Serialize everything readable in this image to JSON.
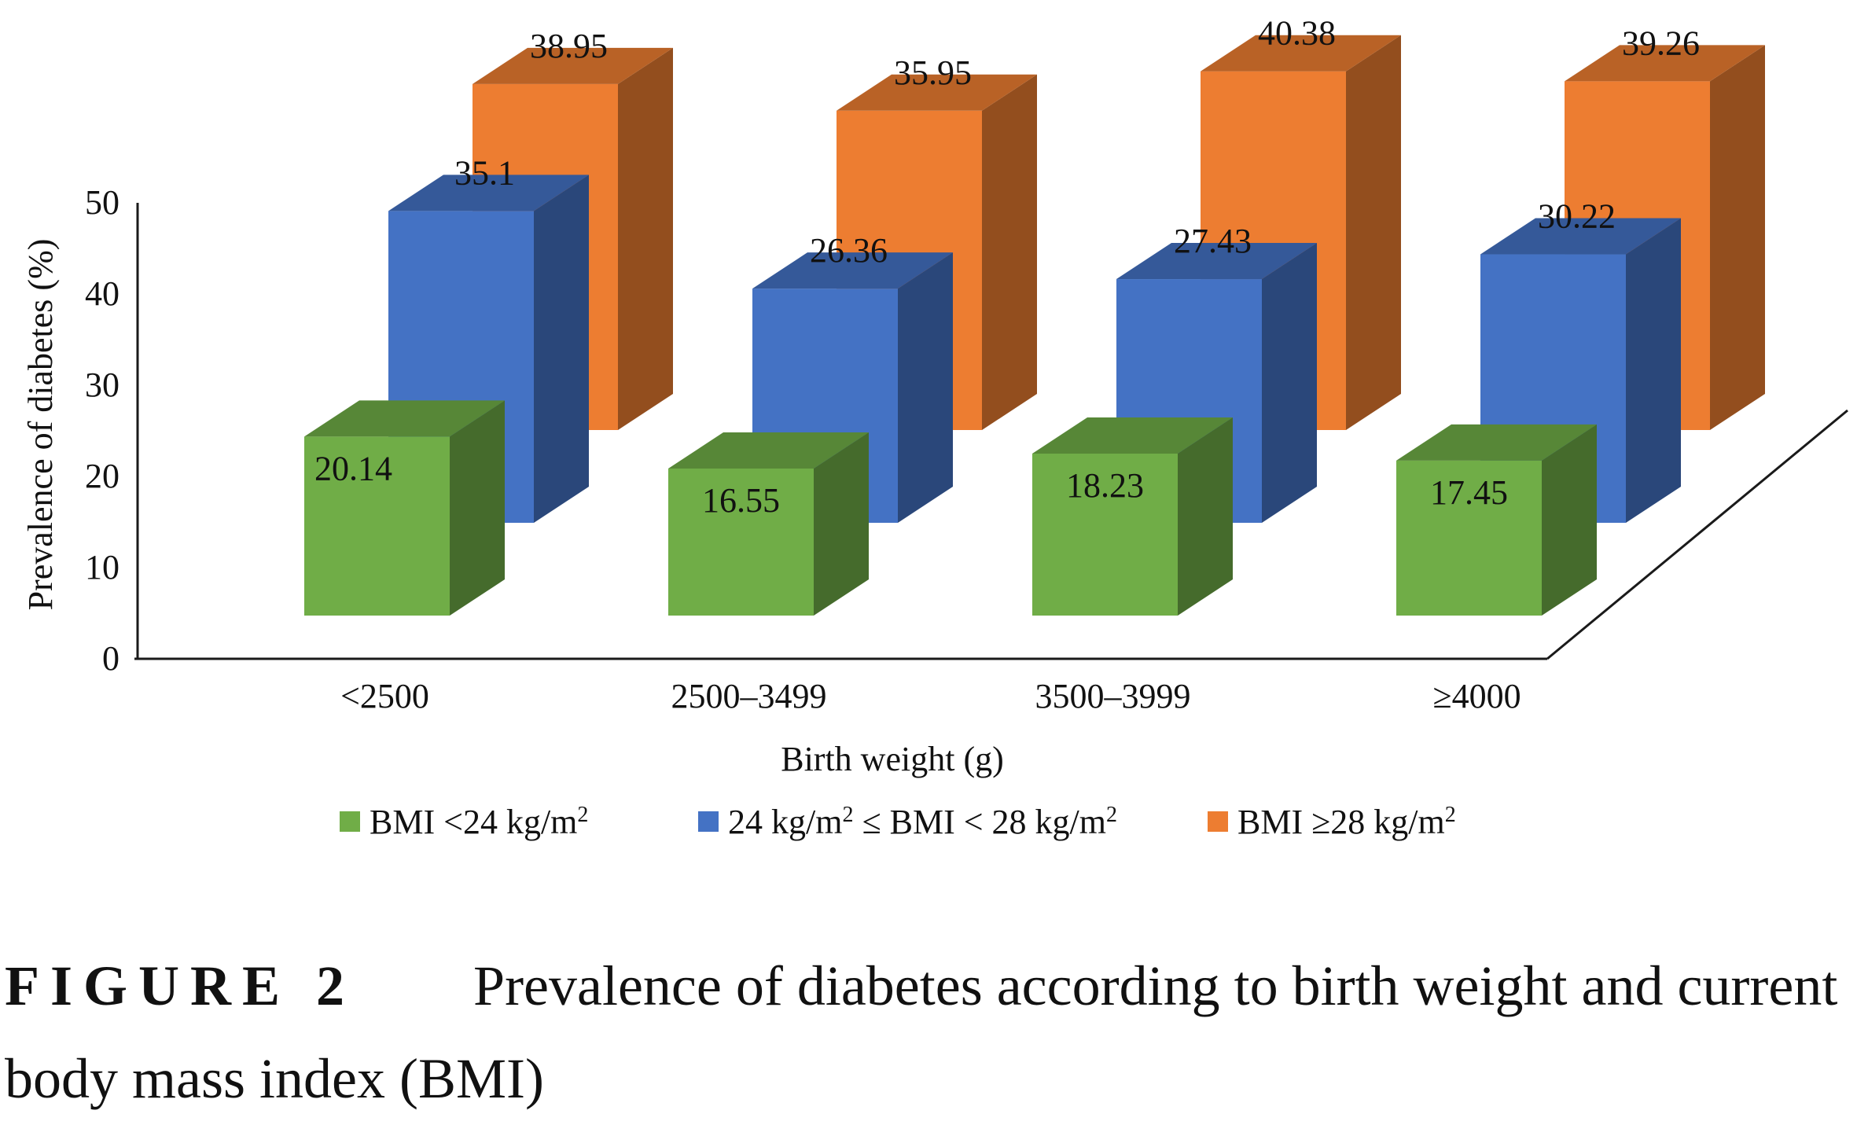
{
  "chart_data": {
    "type": "bar",
    "style": "3d-clustered",
    "title": "",
    "xlabel": "Birth weight (g)",
    "ylabel": "Prevalence of diabetes (%)",
    "ylim": [
      0,
      50
    ],
    "yticks": [
      "0",
      "10",
      "20",
      "30",
      "40",
      "50"
    ],
    "categories": [
      "<2500",
      "2500–3499",
      "3500–3999",
      "≥4000"
    ],
    "series": [
      {
        "name": "BMI <24 kg/m",
        "sup": "2",
        "color": "#70ad47",
        "values": [
          20.14,
          16.55,
          18.23,
          17.45
        ],
        "labels": [
          "20.14",
          "16.55",
          "18.23",
          "17.45"
        ]
      },
      {
        "name": "24 kg/m",
        "sup": "2",
        "name_mid": " ≤ BMI < 28 kg/m",
        "sup2": "2",
        "color": "#4472c4",
        "values": [
          35.1,
          26.36,
          27.43,
          30.22
        ],
        "labels": [
          "35.1",
          "26.36",
          "27.43",
          "30.22"
        ]
      },
      {
        "name": "BMI ≥28 kg/m",
        "sup": "2",
        "color": "#ed7d31",
        "values": [
          38.95,
          35.95,
          40.38,
          39.26
        ],
        "labels": [
          "38.95",
          "35.95",
          "40.38",
          "39.26"
        ]
      }
    ],
    "legend_position": "bottom"
  },
  "caption": {
    "label": "FIGURE 2",
    "text": "Prevalence of diabetes according to birth weight and current body mass index (BMI)"
  }
}
